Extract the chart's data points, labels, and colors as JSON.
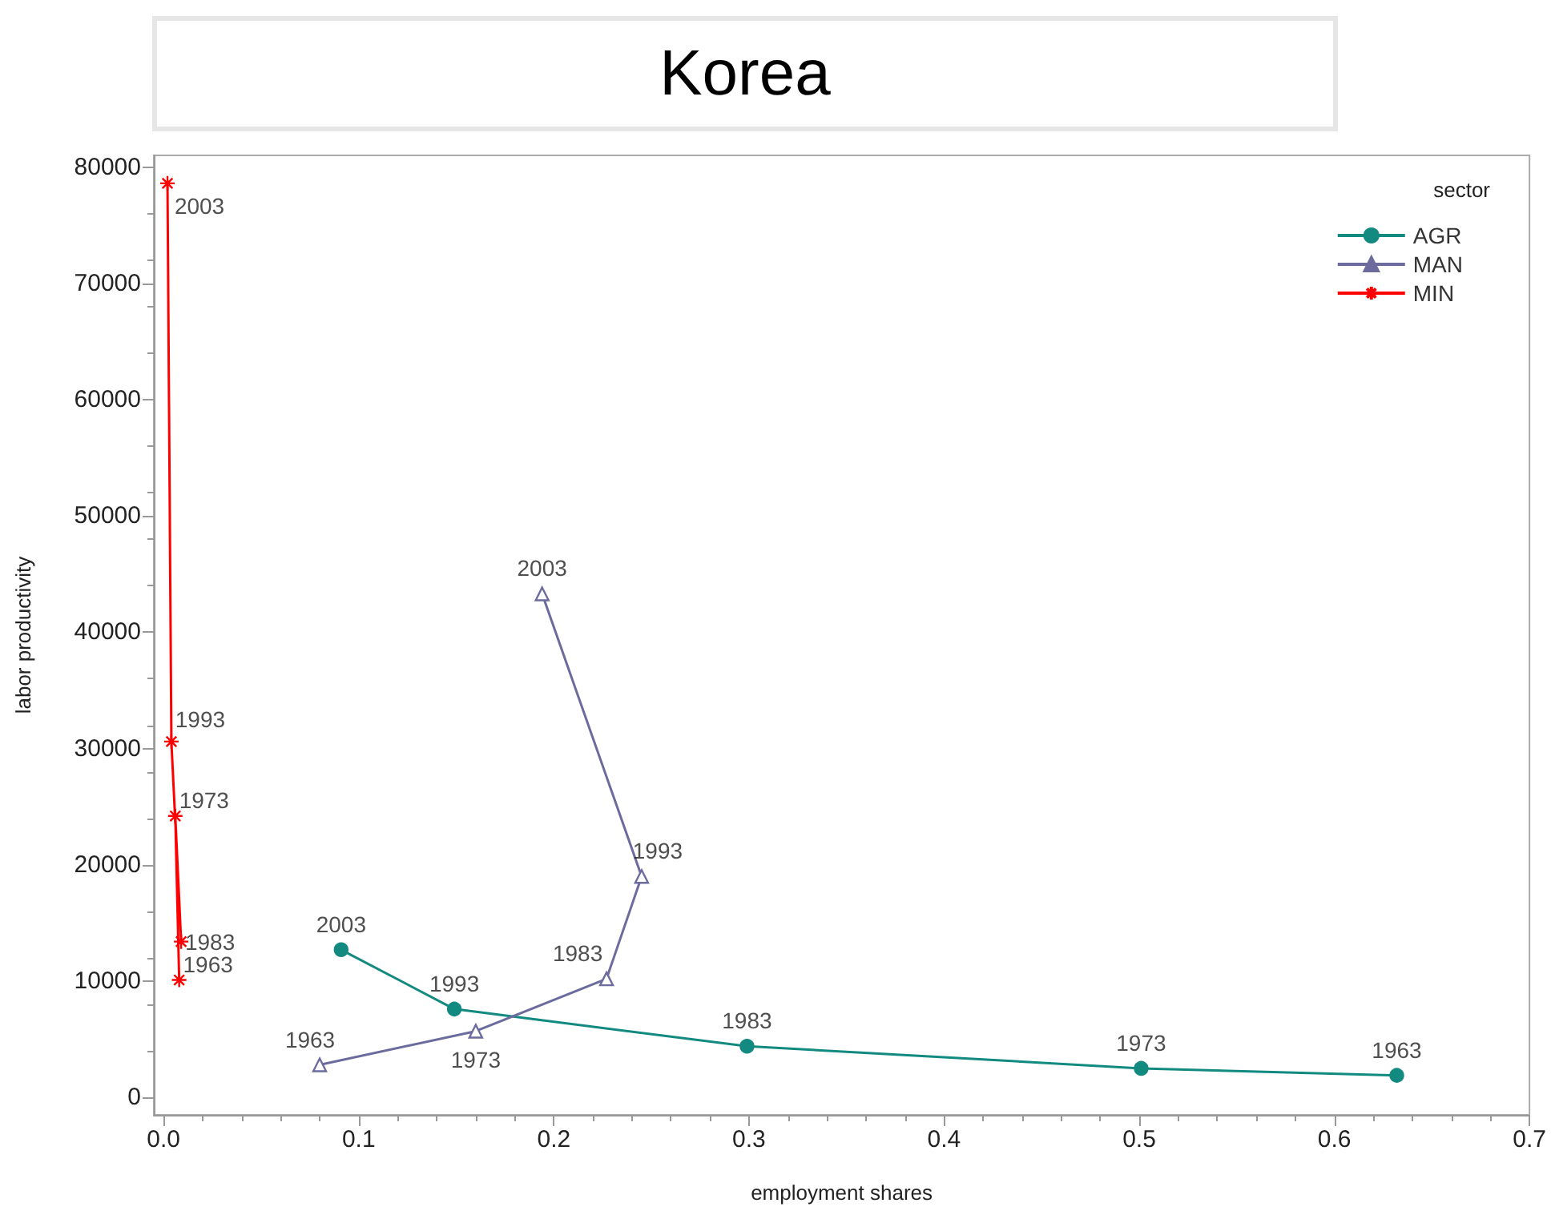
{
  "chart_data": {
    "type": "line",
    "title": "Korea",
    "xlabel": "employment shares",
    "ylabel": "labor productivity",
    "legend_title": "sector",
    "legend": "top right",
    "grid": false,
    "xlim": [
      -0.005,
      0.7
    ],
    "xticks": [
      {
        "value": 0,
        "label": "0.0"
      },
      0.1,
      0.2,
      0.3,
      0.4,
      0.5,
      0.6,
      0.7
    ],
    "ylim": [
      -1500,
      81000
    ],
    "yticks": [
      0,
      10000,
      20000,
      30000,
      40000,
      50000,
      60000,
      70000,
      80000
    ],
    "series": [
      {
        "name": "AGR",
        "color": "#138a80",
        "marker": "circle",
        "x": [
          0.632,
          0.501,
          0.299,
          0.149,
          0.091
        ],
        "values": [
          1900,
          2500,
          4400,
          7600,
          12700
        ]
      },
      {
        "name": "MAN",
        "color": "#6b6b9e",
        "marker": "triangle",
        "x": [
          0.08,
          0.16,
          0.227,
          0.245,
          0.194
        ],
        "values": [
          2800,
          5700,
          10200,
          19000,
          43300
        ]
      },
      {
        "name": "MIN",
        "color": "#ff0000",
        "marker": "cross",
        "x": [
          0.008,
          0.006,
          0.009,
          0.004,
          0.002
        ],
        "values": [
          10100,
          24200,
          13400,
          30600,
          78600
        ]
      }
    ],
    "annotations": [
      {
        "text": "1963",
        "x": 0.632,
        "y": 1900
      },
      {
        "text": "1973",
        "x": 0.501,
        "y": 2500
      },
      {
        "text": "1983",
        "x": 0.299,
        "y": 4400
      },
      {
        "text": "1993",
        "x": 0.149,
        "y": 7600
      },
      {
        "text": "2003",
        "x": 0.091,
        "y": 12700
      },
      {
        "text": "1963",
        "x": 0.08,
        "y": 2800
      },
      {
        "text": "1973",
        "x": 0.16,
        "y": 5700
      },
      {
        "text": "1983",
        "x": 0.227,
        "y": 10200
      },
      {
        "text": "1993",
        "x": 0.245,
        "y": 19000
      },
      {
        "text": "2003",
        "x": 0.194,
        "y": 43300
      },
      {
        "text": "1963",
        "x": 0.008,
        "y": 10100
      },
      {
        "text": "1973",
        "x": 0.006,
        "y": 24200
      },
      {
        "text": "1983",
        "x": 0.009,
        "y": 13400
      },
      {
        "text": "1993",
        "x": 0.004,
        "y": 30600
      },
      {
        "text": "2003",
        "x": 0.002,
        "y": 78600
      }
    ]
  }
}
